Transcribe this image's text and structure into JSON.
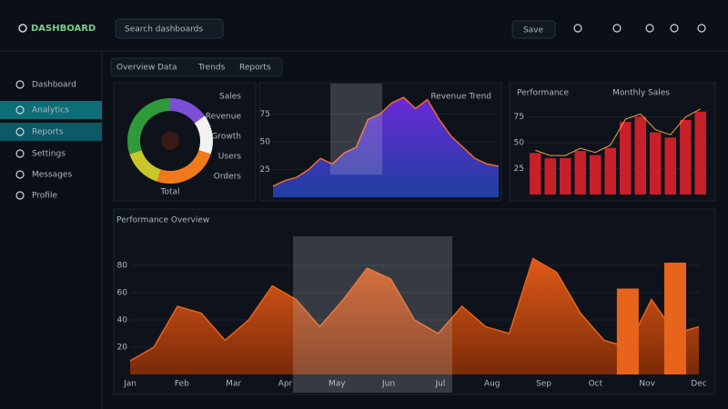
{
  "header": {
    "logo": "DASHBOARD",
    "search": "Search dashboards",
    "button": "Save"
  },
  "sidebar": {
    "items": [
      "Dashboard",
      "Analytics",
      "Reports",
      "Settings",
      "Messages",
      "Profile"
    ],
    "active": [
      1,
      2
    ]
  },
  "tabs": [
    "Overview",
    "Data",
    "Trends",
    "Reports"
  ],
  "chart_data": [
    {
      "type": "donut",
      "categories": [
        "Sales",
        "Revenue",
        "Growth",
        "Users",
        "Orders"
      ],
      "values": [
        15,
        15,
        25,
        15,
        30
      ],
      "colors": [
        "#7a4fd6",
        "#f2f2f2",
        "#f07a1a",
        "#c9c62a",
        "#2f9a3a"
      ],
      "total_label": "Total"
    },
    {
      "type": "area",
      "title": "Revenue Trend",
      "values": [
        10,
        15,
        18,
        25,
        35,
        30,
        40,
        45,
        70,
        75,
        85,
        90,
        80,
        88,
        70,
        55,
        45,
        35,
        30,
        28
      ],
      "ylim": [
        0,
        100
      ],
      "yticks": [
        25,
        50,
        75
      ],
      "color": "#f06a2a",
      "fill_top": "#6a2ad8",
      "fill_bottom": "#1f3fa0"
    },
    {
      "type": "bar",
      "title": "Performance",
      "subtitle": "Monthly Sales",
      "values": [
        40,
        35,
        35,
        42,
        38,
        45,
        70,
        75,
        60,
        55,
        72,
        80
      ],
      "ylim": [
        0,
        100
      ],
      "yticks": [
        25,
        50,
        75
      ],
      "color": "#c8202a",
      "line_color": "#f0a040"
    },
    {
      "type": "area",
      "title": "Performance Overview",
      "values": [
        10,
        20,
        50,
        45,
        25,
        40,
        65,
        55,
        35,
        55,
        78,
        70,
        40,
        30,
        50,
        35,
        30,
        85,
        75,
        45,
        25,
        20,
        55,
        30,
        35
      ],
      "bar_values": [
        null,
        null,
        null,
        null,
        null,
        null,
        null,
        null,
        null,
        null,
        null,
        null,
        null,
        null,
        null,
        null,
        null,
        null,
        null,
        null,
        null,
        63,
        null,
        82,
        null
      ],
      "x_labels": [
        "Jan",
        "Feb",
        "Mar",
        "Apr",
        "May",
        "Jun",
        "Jul",
        "Aug",
        "Sep",
        "Oct",
        "Nov",
        "Dec"
      ],
      "ylim": [
        0,
        100
      ],
      "yticks": [
        20,
        40,
        60,
        80
      ],
      "color": "#e8641a",
      "fill_top": "#e05a18",
      "fill_bottom": "#7a2a08"
    }
  ]
}
